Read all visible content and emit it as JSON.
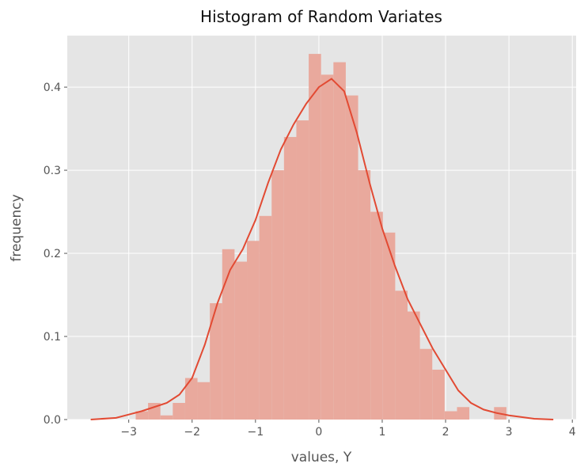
{
  "chart_data": {
    "type": "histogram",
    "title": "Histogram of Random Variates",
    "x_label": "values, Y",
    "y_label": "frequency",
    "bins": [
      -2.89,
      -2.695,
      -2.5,
      -2.305,
      -2.11,
      -1.915,
      -1.72,
      -1.525,
      -1.33,
      -1.135,
      -0.94,
      -0.745,
      -0.55,
      -0.355,
      -0.16,
      0.035,
      0.23,
      0.425,
      0.62,
      0.815,
      1.01,
      1.205,
      1.4,
      1.595,
      1.79,
      1.985,
      2.18,
      2.375,
      2.57,
      2.765,
      2.96
    ],
    "values": [
      0.01,
      0.02,
      0.005,
      0.02,
      0.05,
      0.045,
      0.14,
      0.205,
      0.19,
      0.215,
      0.245,
      0.3,
      0.34,
      0.36,
      0.44,
      0.415,
      0.43,
      0.39,
      0.3,
      0.25,
      0.225,
      0.155,
      0.13,
      0.085,
      0.06,
      0.01,
      0.015,
      0,
      0,
      0.015
    ],
    "color": "#e9a99d",
    "line": {
      "color": "#e24a33",
      "x": [
        -3.6,
        -3.2,
        -3.0,
        -2.8,
        -2.6,
        -2.4,
        -2.2,
        -2.0,
        -1.8,
        -1.6,
        -1.4,
        -1.2,
        -1.0,
        -0.8,
        -0.6,
        -0.4,
        -0.2,
        0.0,
        0.2,
        0.4,
        0.6,
        0.8,
        1.0,
        1.2,
        1.4,
        1.6,
        1.8,
        2.0,
        2.2,
        2.4,
        2.6,
        2.8,
        3.0,
        3.2,
        3.4,
        3.7
      ],
      "values": [
        0.0,
        0.002,
        0.006,
        0.01,
        0.015,
        0.02,
        0.03,
        0.05,
        0.09,
        0.14,
        0.18,
        0.205,
        0.24,
        0.285,
        0.325,
        0.355,
        0.38,
        0.4,
        0.41,
        0.395,
        0.345,
        0.285,
        0.23,
        0.185,
        0.145,
        0.115,
        0.085,
        0.06,
        0.035,
        0.02,
        0.012,
        0.008,
        0.005,
        0.003,
        0.001,
        0.0
      ]
    },
    "xlim": [
      -3.97,
      4.06
    ],
    "ylim": [
      0,
      0.462
    ],
    "xticks": [
      {
        "value": -3,
        "label": "−3"
      },
      {
        "value": -2,
        "label": "−2"
      },
      {
        "value": -1,
        "label": "−1"
      },
      0,
      1,
      2,
      3,
      4
    ],
    "yticks": [
      {
        "value": 0,
        "label": "0.0"
      },
      0.1,
      0.2,
      0.3,
      0.4
    ],
    "grid": true
  }
}
